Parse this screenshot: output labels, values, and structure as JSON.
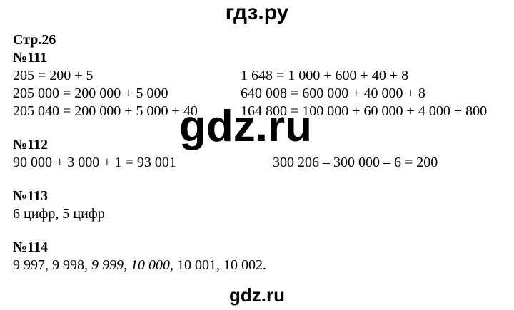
{
  "brand": {
    "header": "гдз.ру",
    "watermark": "gdz.ru",
    "footer": "gdz.ru"
  },
  "page_label": "Стр.26",
  "problems": {
    "p111": {
      "number": "№111",
      "left": [
        "205 = 200 + 5",
        "205 000 = 200 000 + 5 000",
        "205 040 = 200 000 + 5 000 + 40"
      ],
      "right": [
        "1 648 = 1 000 + 600 + 40 + 8",
        "640 008 = 600 000 + 40 000 + 8",
        "164 800 = 100 000 + 60 000 + 4 000 + 800"
      ]
    },
    "p112": {
      "number": "№112",
      "left": [
        "90 000 + 3 000 + 1 = 93 001"
      ],
      "right": [
        "300 206 – 300 000 – 6 = 200"
      ]
    },
    "p113": {
      "number": "№113",
      "answer": "6 цифр, 5 цифр"
    },
    "p114": {
      "number": "№114",
      "answer_prefix": "9 997, 9 998, ",
      "answer_italic": "9 999, 10 000",
      "answer_suffix": ", 10 001, 10 002."
    }
  }
}
